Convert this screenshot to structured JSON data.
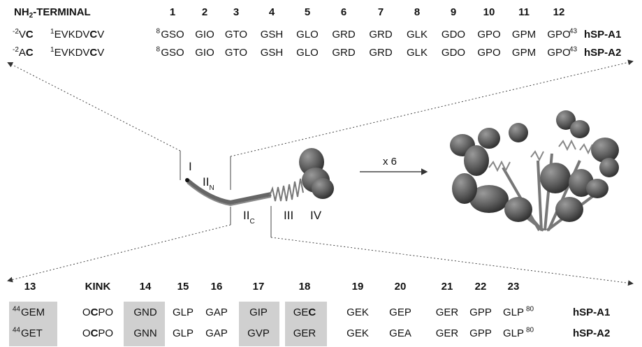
{
  "top": {
    "header": [
      "NH",
      "2",
      "-TERMINAL"
    ],
    "numbers": [
      "1",
      "2",
      "3",
      "4",
      "5",
      "6",
      "7",
      "8",
      "9",
      "10",
      "11",
      "12"
    ],
    "rows": [
      {
        "prefix": [
          "-2",
          "V",
          "C"
        ],
        "nterm": [
          "1",
          "EVKDV",
          "C",
          "V"
        ],
        "start": "8",
        "triplets": [
          "GSO",
          "GIO",
          "GTO",
          "GSH",
          "GLO",
          "GRD",
          "GRD",
          "GLK",
          "GDO",
          "GPO",
          "GPM",
          "GPO"
        ],
        "end": "43",
        "name": "hSP-A1"
      },
      {
        "prefix": [
          "-2",
          "A",
          "C"
        ],
        "nterm": [
          "1",
          "EVKDV",
          "C",
          "V"
        ],
        "start": "8",
        "triplets": [
          "GSO",
          "GIO",
          "GTO",
          "GSH",
          "GLO",
          "GRD",
          "GRD",
          "GLK",
          "GDO",
          "GPO",
          "GPM",
          "GPO"
        ],
        "end": "43",
        "name": "hSP-A2"
      }
    ]
  },
  "diagram": {
    "labels": [
      [
        "I"
      ],
      [
        "II",
        "N"
      ],
      [
        "II",
        "C"
      ],
      [
        "III"
      ],
      [
        "IV"
      ]
    ],
    "multiplier": "x 6"
  },
  "bottom": {
    "headers": [
      "13",
      "KINK",
      "14",
      "15",
      "16",
      "17",
      "18",
      "19",
      "20",
      "21",
      "22",
      "23"
    ],
    "rows": [
      {
        "start": "44",
        "triplets": [
          [
            "GEM"
          ],
          [
            "O",
            "C",
            "PO"
          ],
          [
            "GND"
          ],
          [
            "GLP"
          ],
          [
            "GAP"
          ],
          [
            "GIP"
          ],
          [
            "GE",
            "C"
          ],
          [
            "GEK"
          ],
          [
            "GEP"
          ],
          [
            "GER"
          ],
          [
            "GPP"
          ],
          [
            "GLP"
          ]
        ],
        "end": "80",
        "name": "hSP-A1"
      },
      {
        "start": "44",
        "triplets": [
          [
            "GET"
          ],
          [
            "O",
            "C",
            "PO"
          ],
          [
            "GNN"
          ],
          [
            "GLP"
          ],
          [
            "GAP"
          ],
          [
            "GVP"
          ],
          [
            "GER"
          ],
          [
            "GEK"
          ],
          [
            "GEA"
          ],
          [
            "GER"
          ],
          [
            "GPP"
          ],
          [
            "GLP"
          ]
        ],
        "end": "80",
        "name": "hSP-A2"
      }
    ]
  }
}
